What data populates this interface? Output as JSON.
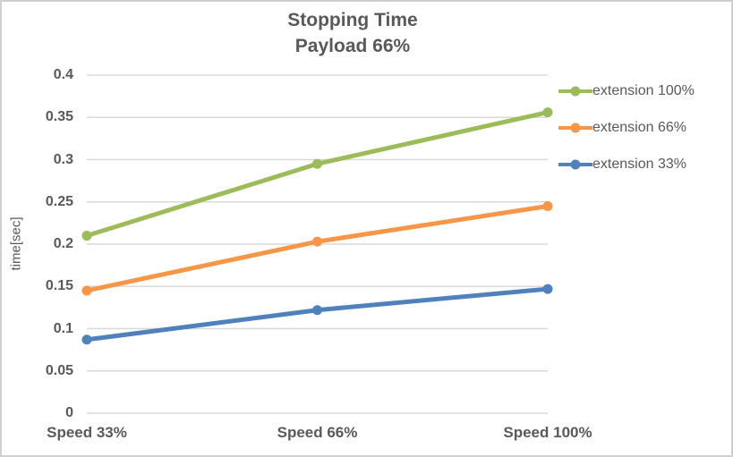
{
  "chart_data": {
    "type": "line",
    "title": "Stopping Time",
    "subtitle": "Payload 66%",
    "categories": [
      "Speed 33%",
      "Speed 66%",
      "Speed 100%"
    ],
    "series": [
      {
        "name": "extension 100%",
        "color": "#9CBB59",
        "values": [
          0.21,
          0.295,
          0.356
        ]
      },
      {
        "name": "extension 66%",
        "color": "#F79646",
        "values": [
          0.145,
          0.203,
          0.245
        ]
      },
      {
        "name": "extension 33%",
        "color": "#4F81BD",
        "values": [
          0.087,
          0.122,
          0.147
        ]
      }
    ],
    "xlabel": "",
    "ylabel": "time[sec]",
    "ylim": [
      0,
      0.4
    ],
    "ytick_step": 0.05,
    "ytick_labels": [
      "0",
      "0.05",
      "0.1",
      "0.15",
      "0.2",
      "0.25",
      "0.3",
      "0.35",
      "0.4"
    ],
    "grid": true,
    "legend_position": "right",
    "colors": {
      "text": "#595959",
      "gridline": "#D9D9D9",
      "frame_border": "#CFCFCF",
      "background": "#FFFFFF"
    }
  }
}
